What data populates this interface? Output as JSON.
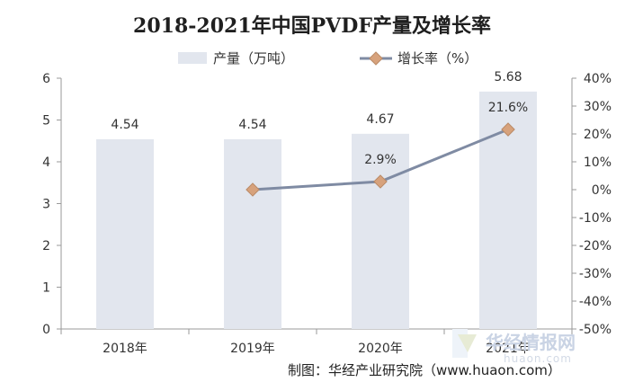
{
  "chart_data": {
    "type": "bar",
    "title": "2018-2021年中国PVDF产量及增长率",
    "categories": [
      "2018年",
      "2019年",
      "2020年",
      "2021年"
    ],
    "series": [
      {
        "name": "产量（万吨）",
        "type": "bar",
        "axis": "left",
        "values": [
          4.54,
          4.54,
          4.67,
          5.68
        ],
        "labels": [
          "4.54",
          "4.54",
          "4.67",
          "5.68"
        ]
      },
      {
        "name": "增长率（%）",
        "type": "line",
        "axis": "right",
        "values": [
          null,
          0.0,
          2.9,
          21.6
        ],
        "labels": [
          "",
          "",
          "2.9%",
          "21.6%"
        ]
      }
    ],
    "ylim_left": [
      0,
      6
    ],
    "yticks_left": [
      "0",
      "1",
      "2",
      "3",
      "4",
      "5",
      "6"
    ],
    "ylim_right": [
      -50,
      40
    ],
    "yticks_right": [
      "-50%",
      "-40%",
      "-30%",
      "-20%",
      "-10%",
      "0%",
      "10%",
      "20%",
      "30%",
      "40%"
    ],
    "legend_position": "top",
    "grid": false,
    "colors": {
      "bar": "#e2e6ee",
      "line": "#7f8ba3",
      "marker": "#d7a27c",
      "marker_edge": "#b98a66"
    }
  },
  "source_note": "制图：华经产业研究院（www.huaon.com）",
  "watermark": {
    "text": "华经情报网",
    "url": "huaon.com"
  }
}
